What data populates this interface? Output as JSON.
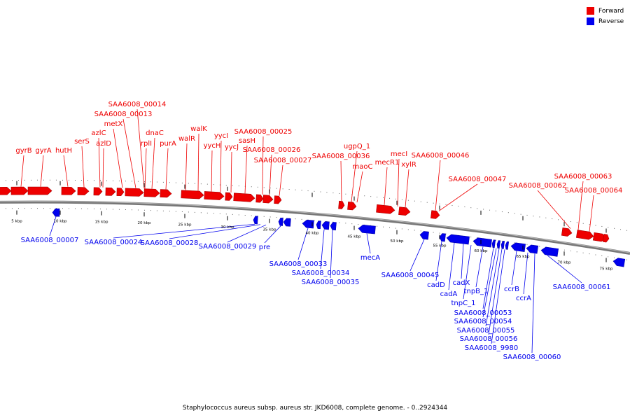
{
  "caption": "Staphylococcus aureus subsp. aureus str. JKD6008, complete genome. - 0..2924344",
  "legend": [
    {
      "label": "Forward",
      "color": "#ee0000"
    },
    {
      "label": "Reverse",
      "color": "#0000ee"
    }
  ],
  "colors": {
    "forward": "#ee0000",
    "reverse": "#0000ee",
    "backbone": "#777777"
  },
  "ticks": [
    "5 kbp",
    "10 kbp",
    "15 kbp",
    "20 kbp",
    "25 kbp",
    "30 kbp",
    "35 kbp",
    "40 kbp",
    "45 kbp",
    "50 kbp",
    "55 kbp",
    "60 kbp",
    "65 kbp",
    "70 kbp",
    "75 kbp"
  ],
  "forward_labels": [
    "gyrB",
    "gyrA",
    "hutH",
    "serS",
    "azlC",
    "azlD",
    "metX",
    "SAA6008_00013",
    "SAA6008_00014",
    "rplI",
    "dnaC",
    "purA",
    "walR",
    "walK",
    "yycH",
    "yycI",
    "yycJ",
    "sasH",
    "SAA6008_00025",
    "SAA6008_00026",
    "SAA6008_00027",
    "SAA6008_00036",
    "ugpQ_1",
    "maoC",
    "mecR1",
    "mecI",
    "xylR",
    "SAA6008_00046",
    "SAA6008_00047",
    "SAA6008_00062",
    "SAA6008_00063",
    "SAA6008_00064"
  ],
  "reverse_labels": [
    "SAA6008_00007",
    "SAA6008_00024",
    "SAA6008_00028",
    "SAA6008_00029",
    "pre",
    "SAA6008_00033",
    "SAA6008_00034",
    "SAA6008_00035",
    "mecA",
    "SAA6008_00045",
    "cadD",
    "cadA",
    "cadX",
    "tnpC_1",
    "tnpB_1",
    "ccrB",
    "ccrA",
    "SAA6008_00053",
    "SAA6008_00054",
    "SAA6008_00055",
    "SAA6008_00056",
    "SAA6008_9980",
    "SAA6008_00060",
    "SAA6008_00061"
  ]
}
